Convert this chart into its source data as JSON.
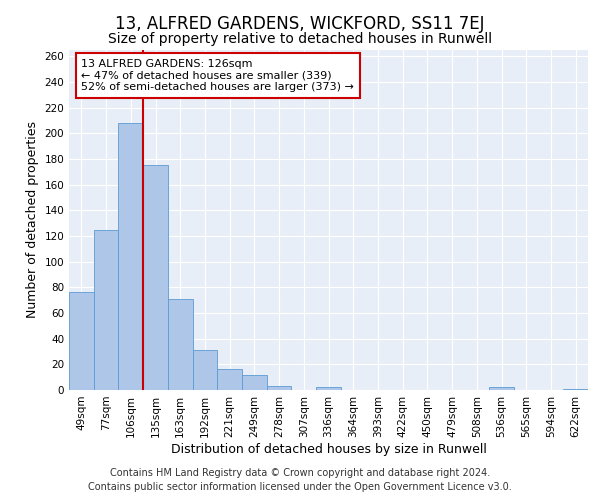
{
  "title": "13, ALFRED GARDENS, WICKFORD, SS11 7EJ",
  "subtitle": "Size of property relative to detached houses in Runwell",
  "xlabel": "Distribution of detached houses by size in Runwell",
  "ylabel": "Number of detached properties",
  "categories": [
    "49sqm",
    "77sqm",
    "106sqm",
    "135sqm",
    "163sqm",
    "192sqm",
    "221sqm",
    "249sqm",
    "278sqm",
    "307sqm",
    "336sqm",
    "364sqm",
    "393sqm",
    "422sqm",
    "450sqm",
    "479sqm",
    "508sqm",
    "536sqm",
    "565sqm",
    "594sqm",
    "622sqm"
  ],
  "values": [
    76,
    125,
    208,
    175,
    71,
    31,
    16,
    12,
    3,
    0,
    2,
    0,
    0,
    0,
    0,
    0,
    0,
    2,
    0,
    0,
    1
  ],
  "bar_color": "#aec6e8",
  "bar_edge_color": "#5b9bd5",
  "vline_x": 2.5,
  "vline_color": "#cc0000",
  "annotation_text": "13 ALFRED GARDENS: 126sqm\n← 47% of detached houses are smaller (339)\n52% of semi-detached houses are larger (373) →",
  "annotation_box_color": "#ffffff",
  "annotation_box_edge_color": "#cc0000",
  "ylim": [
    0,
    265
  ],
  "yticks": [
    0,
    20,
    40,
    60,
    80,
    100,
    120,
    140,
    160,
    180,
    200,
    220,
    240,
    260
  ],
  "background_color": "#e8eef7",
  "grid_color": "#ffffff",
  "footnote_line1": "Contains HM Land Registry data © Crown copyright and database right 2024.",
  "footnote_line2": "Contains public sector information licensed under the Open Government Licence v3.0.",
  "title_fontsize": 12,
  "subtitle_fontsize": 10,
  "xlabel_fontsize": 9,
  "ylabel_fontsize": 9,
  "annotation_fontsize": 8,
  "tick_fontsize": 7.5,
  "footnote_fontsize": 7
}
